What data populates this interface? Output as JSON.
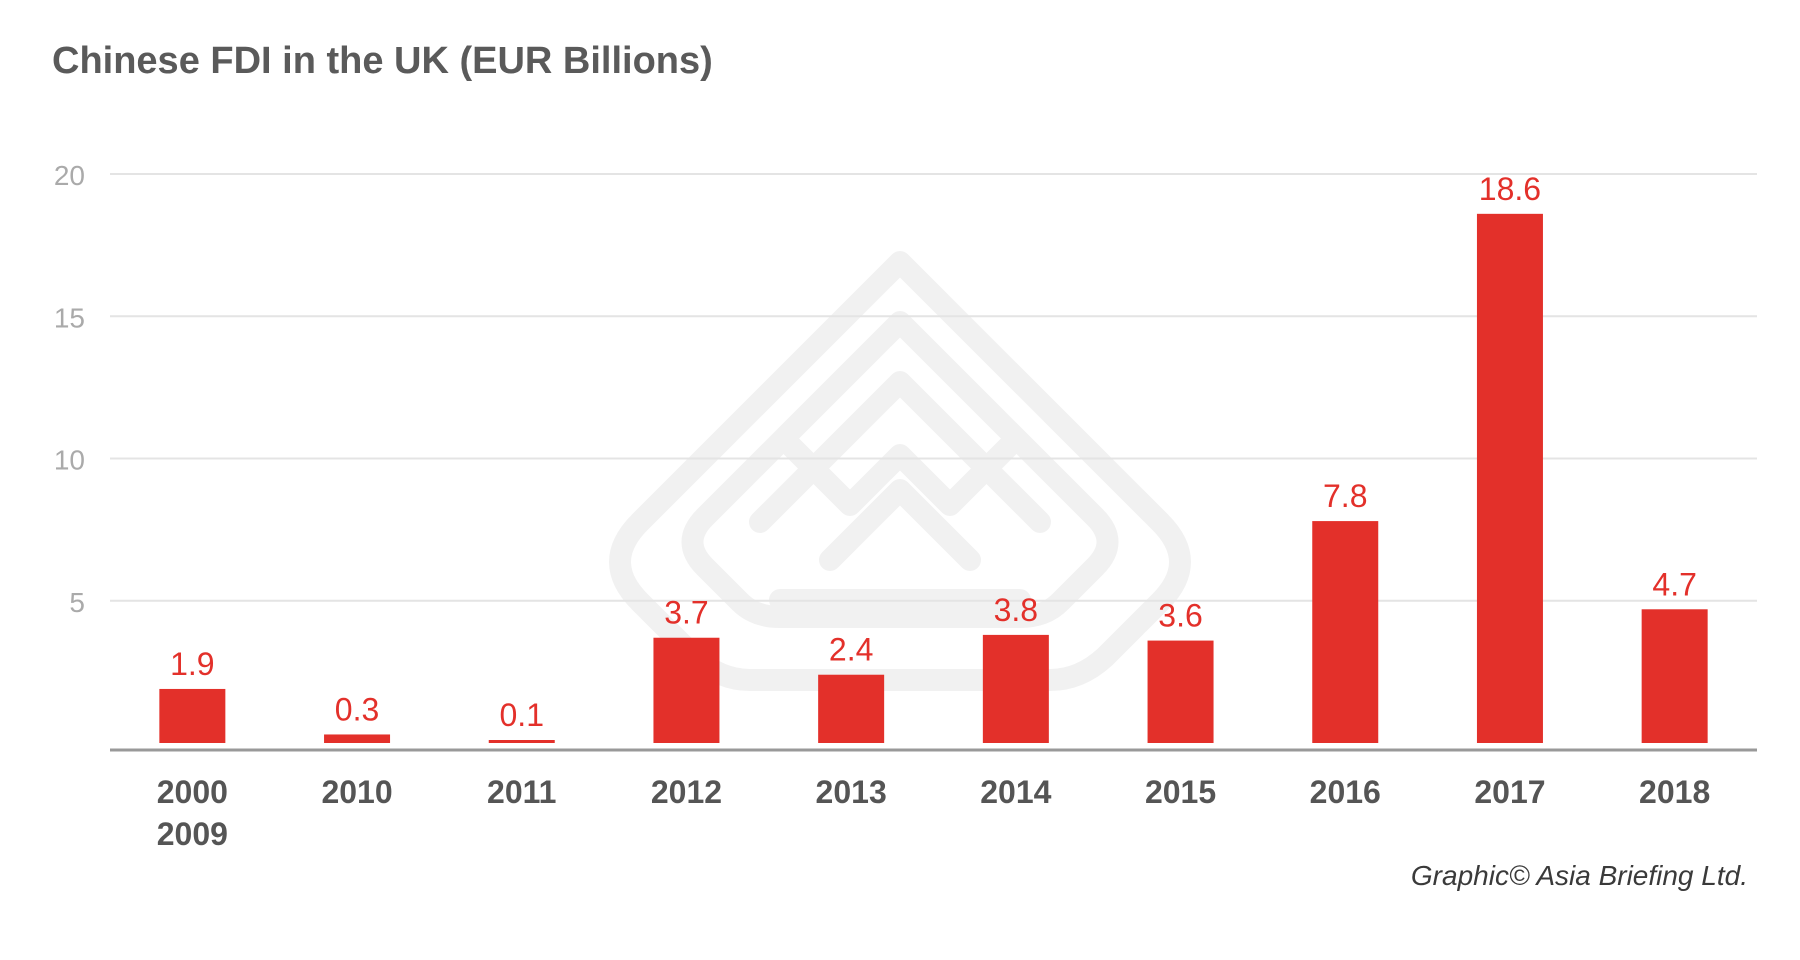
{
  "chart_data": {
    "type": "bar",
    "title": "Chinese FDI in the UK (EUR Billions)",
    "categories": [
      [
        "2000",
        "2009"
      ],
      [
        "2010"
      ],
      [
        "2011"
      ],
      [
        "2012"
      ],
      [
        "2013"
      ],
      [
        "2014"
      ],
      [
        "2015"
      ],
      [
        "2016"
      ],
      [
        "2017"
      ],
      [
        "2018"
      ]
    ],
    "values": [
      1.9,
      0.3,
      0.1,
      3.7,
      2.4,
      3.8,
      3.6,
      7.8,
      18.6,
      4.7
    ],
    "data_labels": [
      "1.9",
      "0.3",
      "0.1",
      "3.7",
      "2.4",
      "3.8",
      "3.6",
      "7.8",
      "18.6",
      "4.7"
    ],
    "y_ticks": [
      5,
      10,
      15,
      20
    ],
    "ylim": [
      0,
      20
    ],
    "xlabel": "",
    "ylabel": "",
    "grid": true,
    "legend": "none",
    "bar_color": "#e3302a",
    "label_color": "#e3302a",
    "tick_color": "#aaaaaa",
    "category_color": "#555555",
    "grid_color": "#e4e4e4",
    "axis_color": "#999999"
  },
  "credit": "Graphic© Asia Briefing Ltd."
}
